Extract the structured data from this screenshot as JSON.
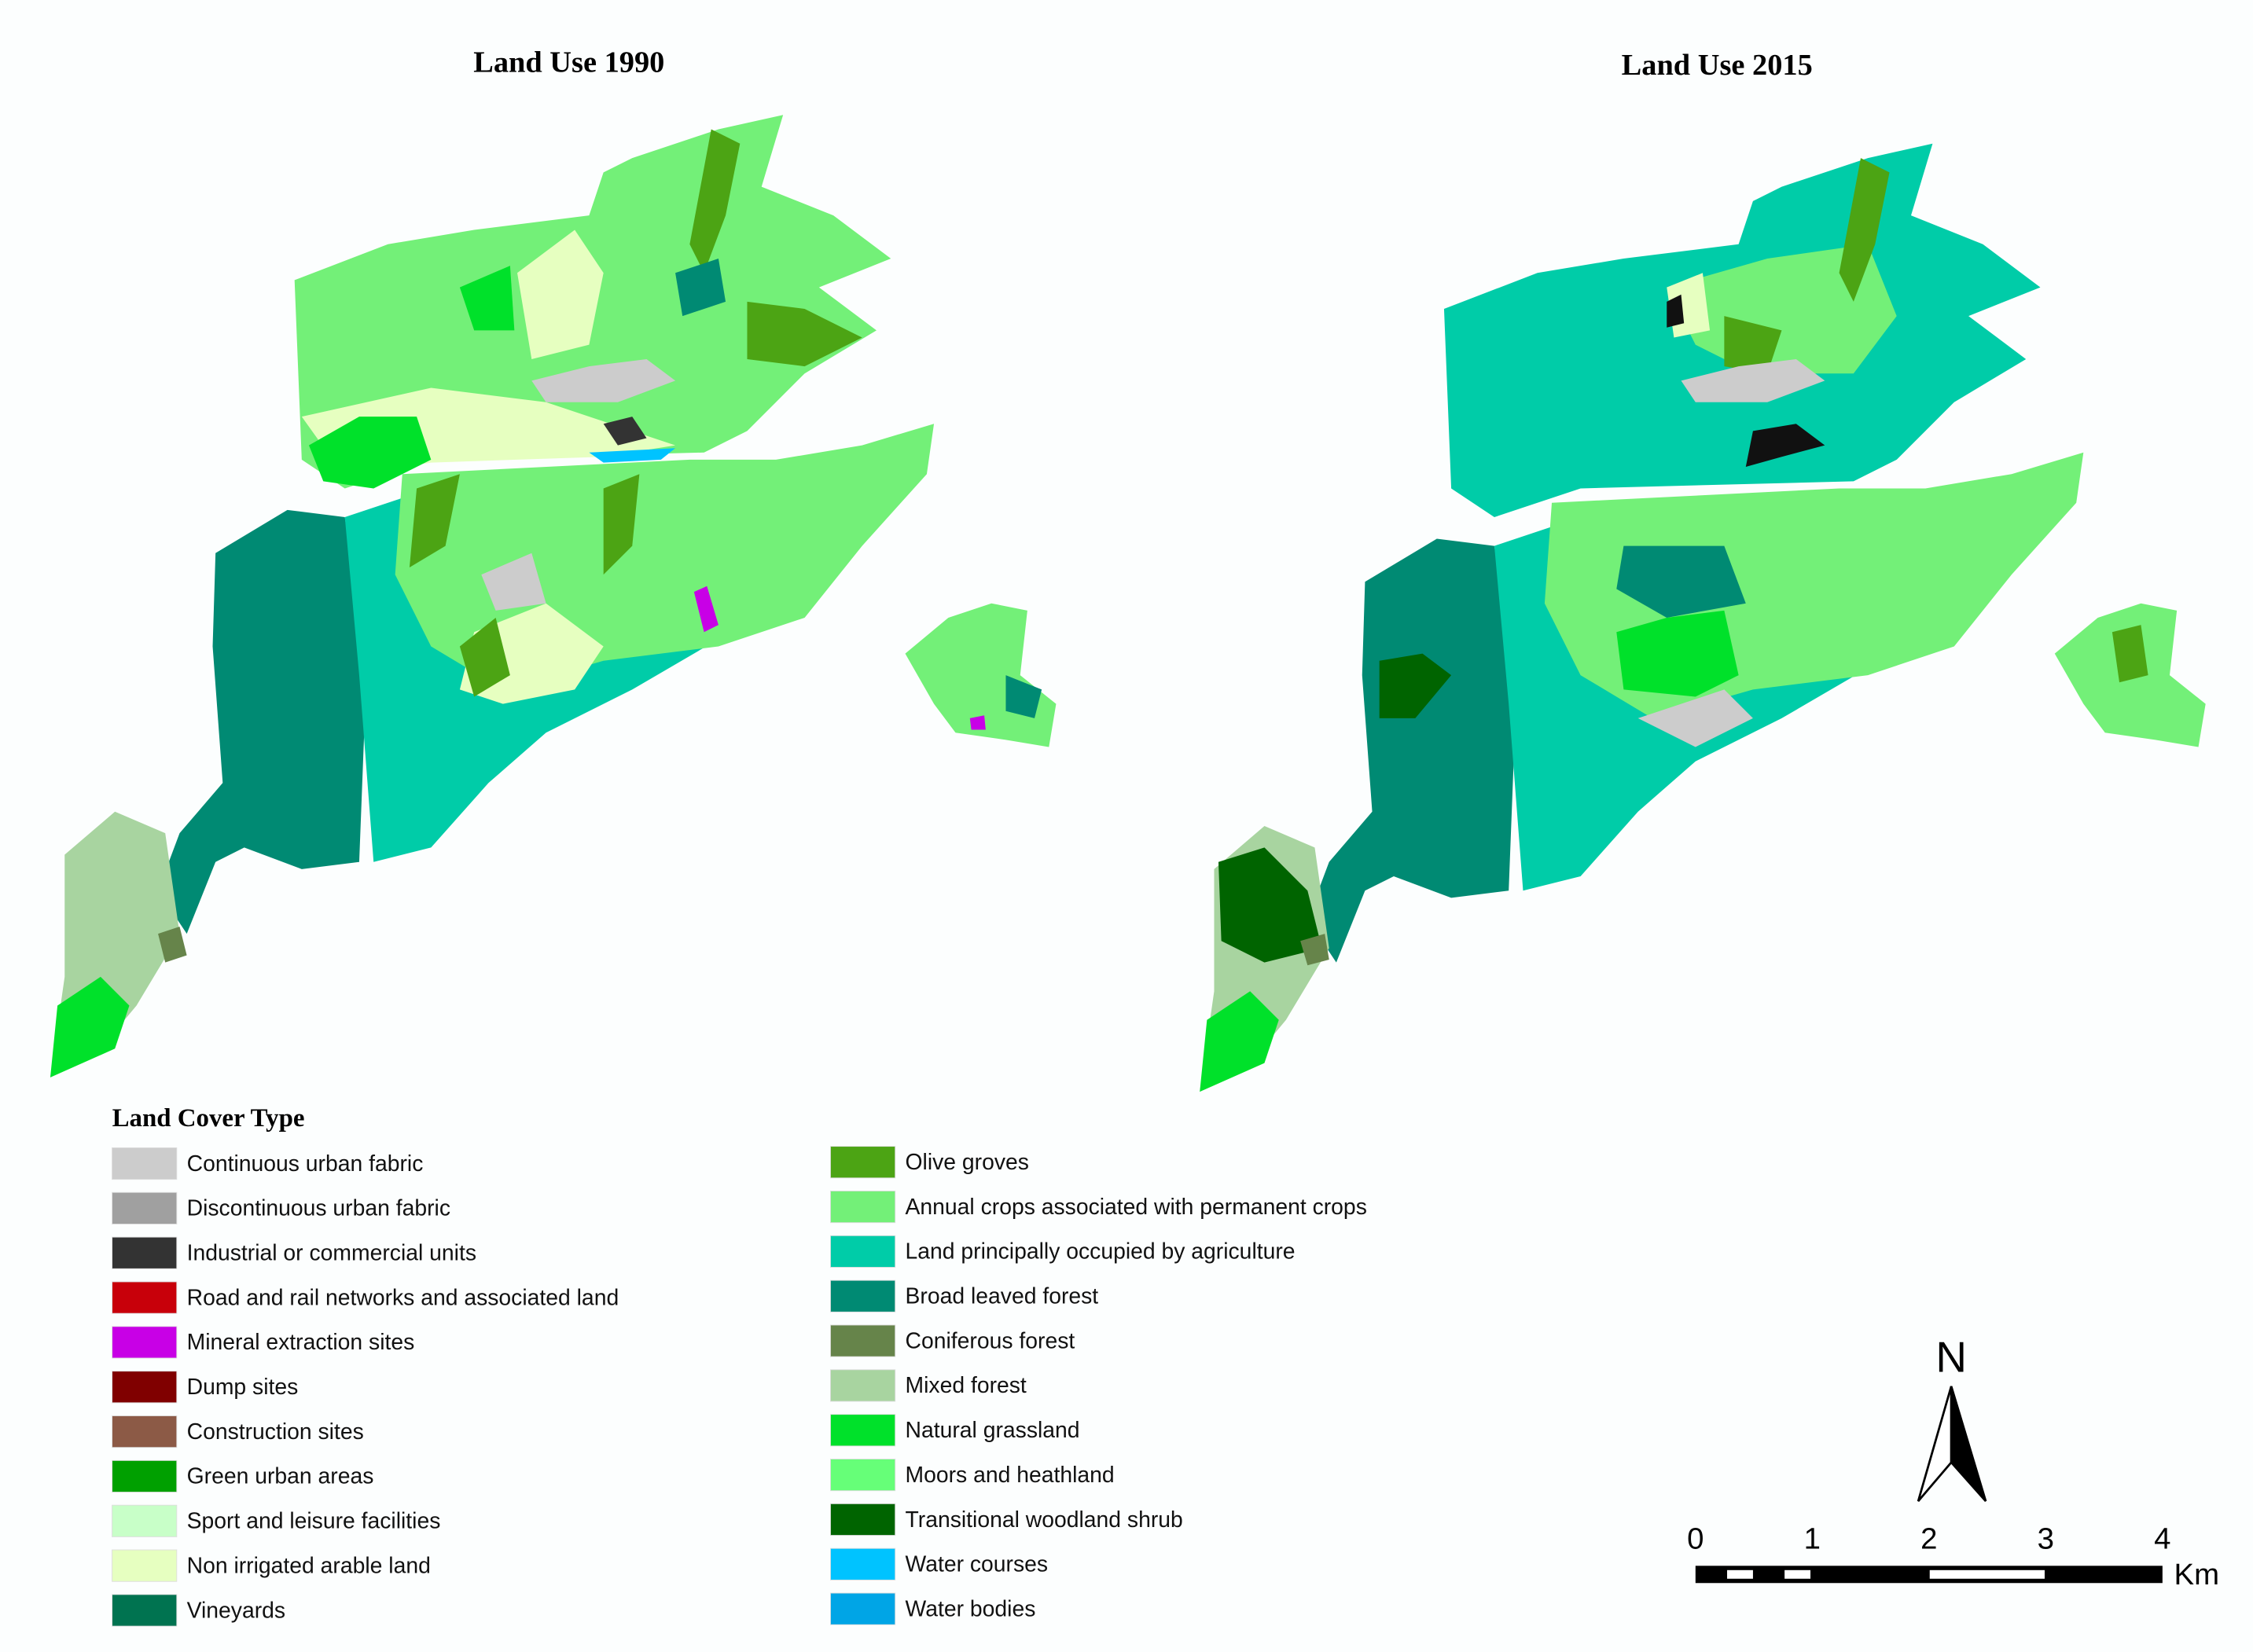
{
  "maps": [
    {
      "title": "Land Use 1990"
    },
    {
      "title": "Land Use 2015"
    }
  ],
  "legend": {
    "title": "Land Cover Type",
    "items": [
      {
        "label": "Continuous urban fabric",
        "color": "#cccccc"
      },
      {
        "label": "Discontinuous urban fabric",
        "color": "#a0a0a0"
      },
      {
        "label": "Industrial or commercial units",
        "color": "#333333"
      },
      {
        "label": "Road and rail networks and associated land",
        "color": "#c8000a"
      },
      {
        "label": "Mineral extraction sites",
        "color": "#c800e6"
      },
      {
        "label": "Dump sites",
        "color": "#800000"
      },
      {
        "label": "Construction sites",
        "color": "#8c5a46"
      },
      {
        "label": "Green urban areas",
        "color": "#00a000"
      },
      {
        "label": "Sport and leisure facilities",
        "color": "#c8ffc8"
      },
      {
        "label": "Non irrigated arable land",
        "color": "#e6ffc0"
      },
      {
        "label": "Vineyards",
        "color": "#007350"
      },
      {
        "label": "Olive groves",
        "color": "#4ca414"
      },
      {
        "label": "Annual crops associated with permanent crops",
        "color": "#73f078"
      },
      {
        "label": "Land principally occupied by agriculture",
        "color": "#00cca8"
      },
      {
        "label": "Broad leaved forest",
        "color": "#008a73"
      },
      {
        "label": "Coniferous forest",
        "color": "#66844a"
      },
      {
        "label": "Mixed forest",
        "color": "#a8d4a0"
      },
      {
        "label": "Natural grassland",
        "color": "#00e12a"
      },
      {
        "label": "Moors and heathland",
        "color": "#66ff78"
      },
      {
        "label": "Transitional woodland shrub",
        "color": "#006400"
      },
      {
        "label": "Water courses",
        "color": "#00c3ff"
      },
      {
        "label": "Water bodies",
        "color": "#00a5e6"
      }
    ]
  },
  "north_arrow": "N",
  "scale_bar": {
    "ticks": [
      0,
      1,
      2,
      3,
      4
    ],
    "unit": "Km"
  }
}
